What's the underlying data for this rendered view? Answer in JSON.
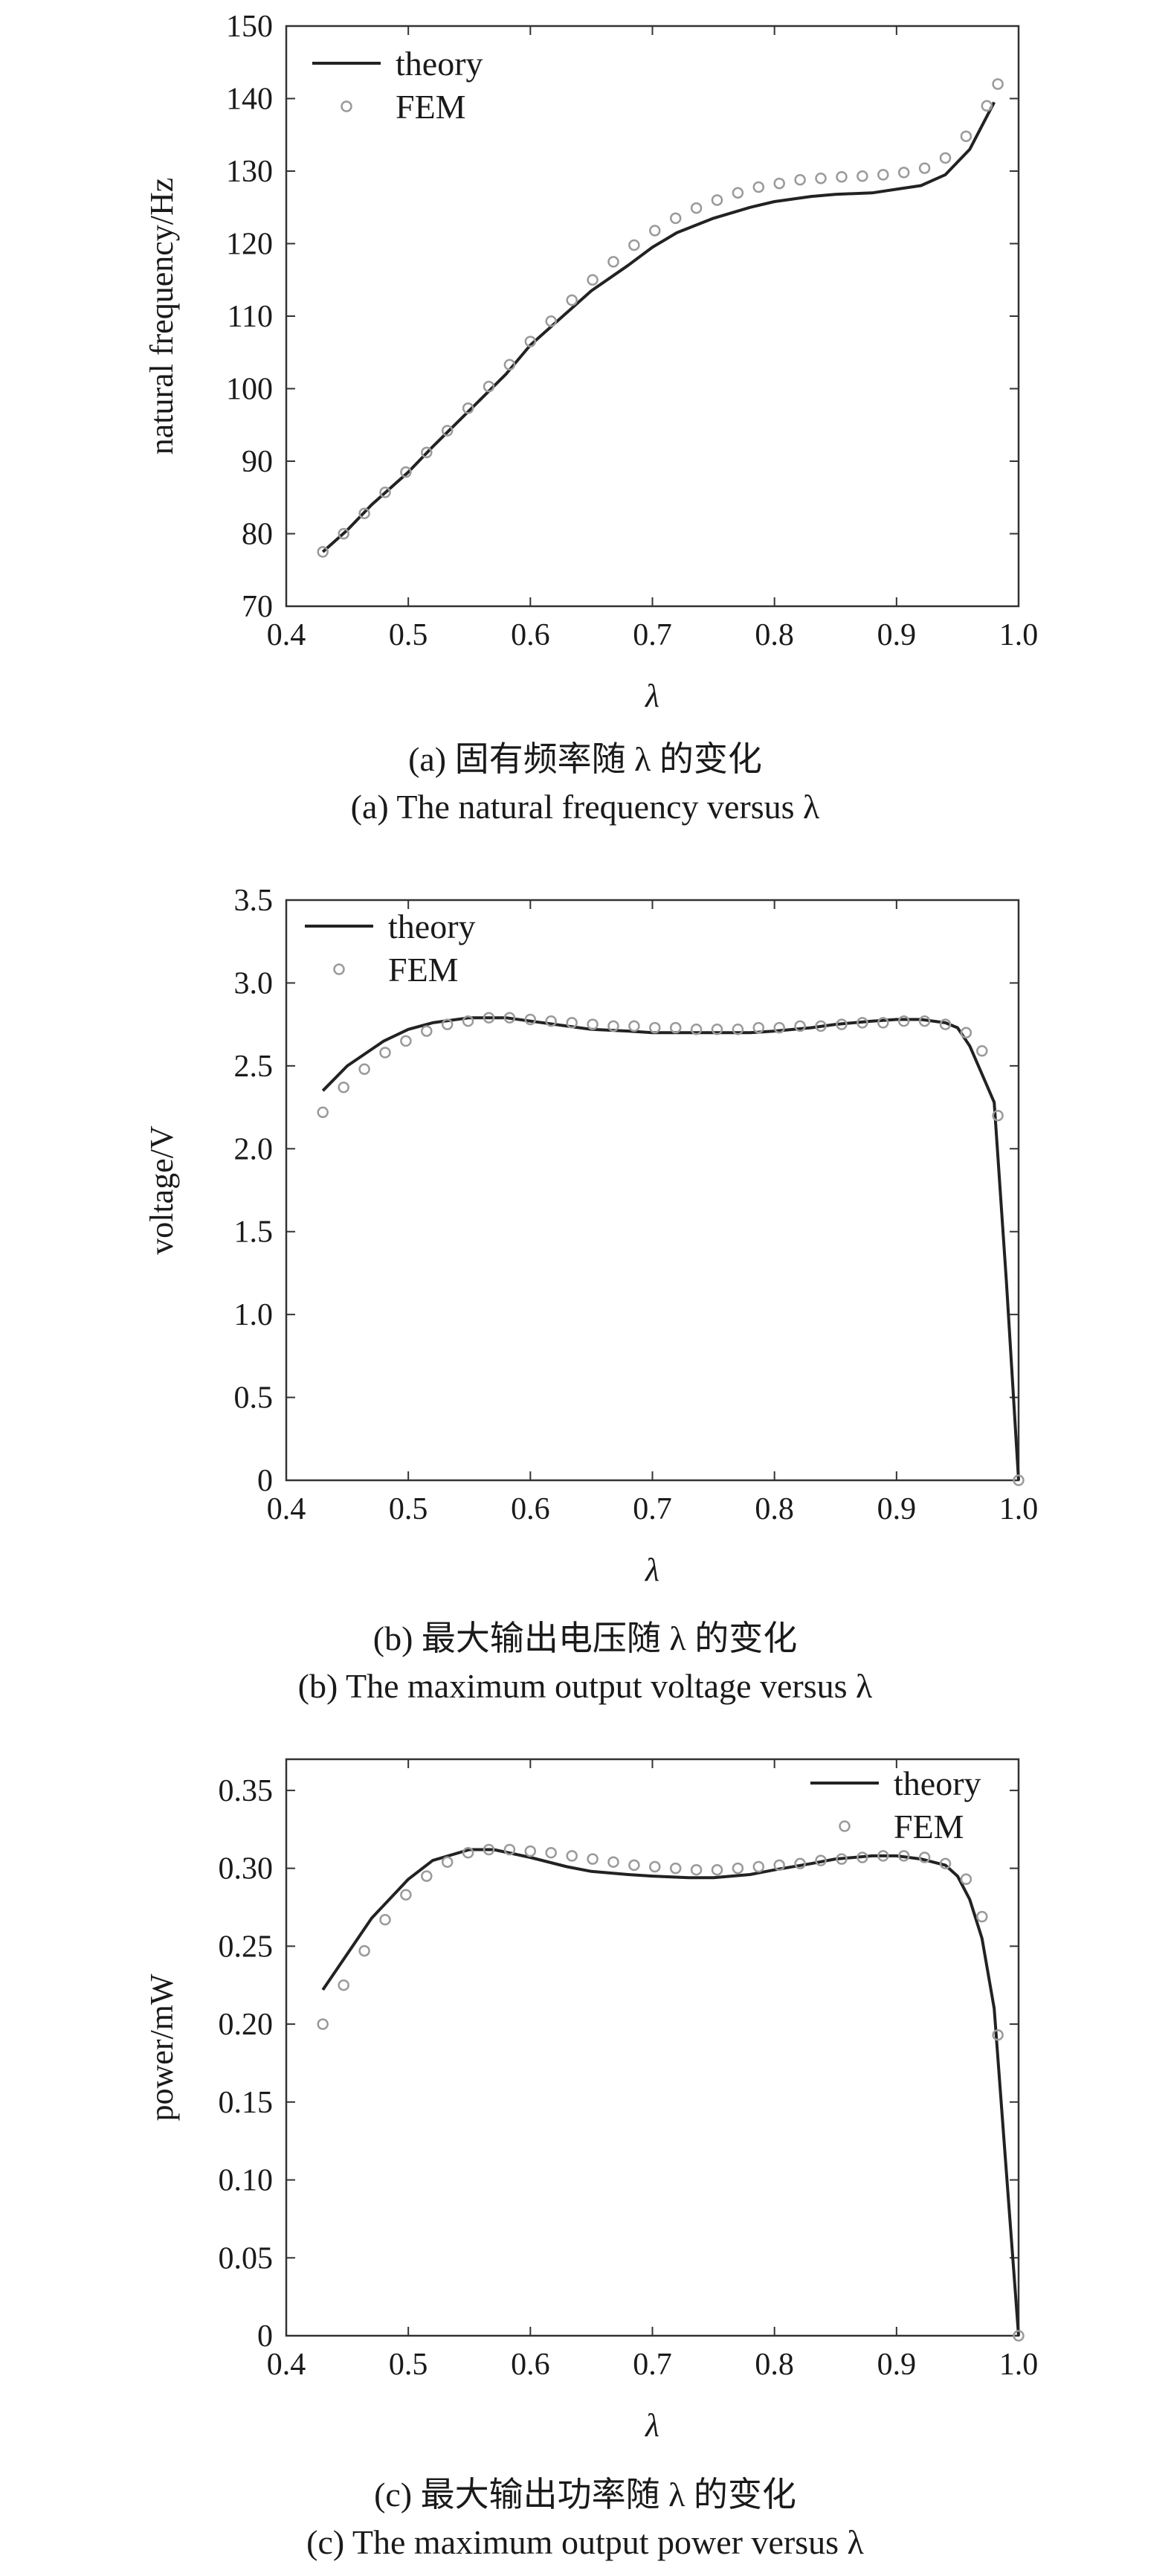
{
  "colors": {
    "theory_line": "#222222",
    "fem_marker": "#9a9a9a",
    "frame": "#333333"
  },
  "chart_data": [
    {
      "type": "line",
      "xlabel": "λ",
      "ylabel": "natural frequency/Hz",
      "xlim": [
        0.4,
        1.0
      ],
      "ylim": [
        70,
        150
      ],
      "xticks": [
        0.4,
        0.5,
        0.6,
        0.7,
        0.8,
        0.9,
        1.0
      ],
      "xtick_labels": [
        "0.4",
        "0.5",
        "0.6",
        "0.7",
        "0.8",
        "0.9",
        "1.0"
      ],
      "yticks": [
        70,
        80,
        90,
        100,
        110,
        120,
        130,
        140,
        150
      ],
      "ytick_labels": [
        "70",
        "80",
        "90",
        "100",
        "110",
        "120",
        "130",
        "140",
        "150"
      ],
      "legend_position": "top-left",
      "grid": false,
      "series": [
        {
          "name": "theory",
          "style": "line",
          "x": [
            0.43,
            0.45,
            0.47,
            0.5,
            0.52,
            0.55,
            0.58,
            0.6,
            0.63,
            0.65,
            0.68,
            0.7,
            0.72,
            0.75,
            0.78,
            0.8,
            0.83,
            0.85,
            0.88,
            0.9,
            0.92,
            0.94,
            0.96,
            0.98
          ],
          "y": [
            77.5,
            80.5,
            84.0,
            88.5,
            92.0,
            97.0,
            102.0,
            106.0,
            110.5,
            113.5,
            117.0,
            119.5,
            121.5,
            123.5,
            125.0,
            125.8,
            126.5,
            126.8,
            127.0,
            127.5,
            128.0,
            129.5,
            133.0,
            139.5
          ]
        },
        {
          "name": "FEM",
          "style": "markers",
          "x": [
            0.43,
            0.447,
            0.464,
            0.481,
            0.498,
            0.515,
            0.532,
            0.549,
            0.566,
            0.583,
            0.6,
            0.617,
            0.634,
            0.651,
            0.668,
            0.685,
            0.702,
            0.719,
            0.736,
            0.753,
            0.77,
            0.787,
            0.804,
            0.821,
            0.838,
            0.855,
            0.872,
            0.889,
            0.906,
            0.923,
            0.94,
            0.957,
            0.974,
            0.983
          ],
          "y": [
            77.5,
            80.0,
            82.8,
            85.7,
            88.5,
            91.2,
            94.2,
            97.3,
            100.3,
            103.3,
            106.5,
            109.3,
            112.2,
            115.0,
            117.5,
            119.8,
            121.8,
            123.5,
            124.9,
            126.0,
            127.0,
            127.8,
            128.3,
            128.8,
            129.0,
            129.2,
            129.3,
            129.5,
            129.8,
            130.4,
            131.8,
            134.8,
            139.0,
            142.0
          ]
        }
      ],
      "caption_cn": "(a) 固有频率随 λ 的变化",
      "caption_en": "(a) The natural frequency versus λ"
    },
    {
      "type": "line",
      "xlabel": "λ",
      "ylabel": "voltage/V",
      "xlim": [
        0.4,
        1.0
      ],
      "ylim": [
        0,
        3.5
      ],
      "xticks": [
        0.4,
        0.5,
        0.6,
        0.7,
        0.8,
        0.9,
        1.0
      ],
      "xtick_labels": [
        "0.4",
        "0.5",
        "0.6",
        "0.7",
        "0.8",
        "0.9",
        "1.0"
      ],
      "yticks": [
        0,
        0.5,
        1.0,
        1.5,
        2.0,
        2.5,
        3.0,
        3.5
      ],
      "ytick_labels": [
        "0",
        "0.5",
        "1.0",
        "1.5",
        "2.0",
        "2.5",
        "3.0",
        "3.5"
      ],
      "legend_position": "top-left",
      "grid": false,
      "series": [
        {
          "name": "theory",
          "style": "line",
          "x": [
            0.43,
            0.45,
            0.48,
            0.5,
            0.52,
            0.55,
            0.58,
            0.6,
            0.63,
            0.65,
            0.68,
            0.7,
            0.73,
            0.75,
            0.78,
            0.8,
            0.83,
            0.85,
            0.88,
            0.9,
            0.92,
            0.94,
            0.95,
            0.96,
            0.97,
            0.98,
            0.99,
            1.0
          ],
          "y": [
            2.35,
            2.5,
            2.65,
            2.72,
            2.76,
            2.79,
            2.79,
            2.77,
            2.74,
            2.72,
            2.71,
            2.7,
            2.7,
            2.7,
            2.7,
            2.71,
            2.73,
            2.75,
            2.77,
            2.78,
            2.78,
            2.76,
            2.73,
            2.62,
            2.45,
            2.28,
            1.2,
            0.0
          ]
        },
        {
          "name": "FEM",
          "style": "markers",
          "x": [
            0.43,
            0.447,
            0.464,
            0.481,
            0.498,
            0.515,
            0.532,
            0.549,
            0.566,
            0.583,
            0.6,
            0.617,
            0.634,
            0.651,
            0.668,
            0.685,
            0.702,
            0.719,
            0.736,
            0.753,
            0.77,
            0.787,
            0.804,
            0.821,
            0.838,
            0.855,
            0.872,
            0.889,
            0.906,
            0.923,
            0.94,
            0.957,
            0.97,
            0.983,
            1.0
          ],
          "y": [
            2.22,
            2.37,
            2.48,
            2.58,
            2.65,
            2.71,
            2.75,
            2.77,
            2.79,
            2.79,
            2.78,
            2.77,
            2.76,
            2.75,
            2.74,
            2.74,
            2.73,
            2.73,
            2.72,
            2.72,
            2.72,
            2.73,
            2.73,
            2.74,
            2.74,
            2.75,
            2.76,
            2.76,
            2.77,
            2.77,
            2.75,
            2.7,
            2.59,
            2.2,
            0.0
          ]
        }
      ],
      "caption_cn": "(b) 最大输出电压随 λ 的变化",
      "caption_en": "(b) The maximum output voltage versus λ"
    },
    {
      "type": "line",
      "xlabel": "λ",
      "ylabel": "power/mW",
      "xlim": [
        0.4,
        1.0
      ],
      "ylim": [
        0,
        0.37
      ],
      "xticks": [
        0.4,
        0.5,
        0.6,
        0.7,
        0.8,
        0.9,
        1.0
      ],
      "xtick_labels": [
        "0.4",
        "0.5",
        "0.6",
        "0.7",
        "0.8",
        "0.9",
        "1.0"
      ],
      "yticks": [
        0,
        0.05,
        0.1,
        0.15,
        0.2,
        0.25,
        0.3,
        0.35
      ],
      "ytick_labels": [
        "0",
        "0.05",
        "0.10",
        "0.15",
        "0.20",
        "0.25",
        "0.30",
        "0.35"
      ],
      "legend_position": "top-right",
      "grid": false,
      "series": [
        {
          "name": "theory",
          "style": "line",
          "x": [
            0.43,
            0.45,
            0.47,
            0.5,
            0.52,
            0.55,
            0.57,
            0.6,
            0.63,
            0.65,
            0.68,
            0.7,
            0.73,
            0.75,
            0.78,
            0.8,
            0.83,
            0.85,
            0.88,
            0.9,
            0.92,
            0.94,
            0.95,
            0.96,
            0.97,
            0.98,
            0.99,
            1.0
          ],
          "y": [
            0.222,
            0.245,
            0.268,
            0.293,
            0.305,
            0.312,
            0.312,
            0.307,
            0.301,
            0.298,
            0.296,
            0.295,
            0.294,
            0.294,
            0.296,
            0.299,
            0.303,
            0.306,
            0.308,
            0.308,
            0.306,
            0.302,
            0.295,
            0.28,
            0.255,
            0.21,
            0.105,
            0.0
          ]
        },
        {
          "name": "FEM",
          "style": "markers",
          "x": [
            0.43,
            0.447,
            0.464,
            0.481,
            0.498,
            0.515,
            0.532,
            0.549,
            0.566,
            0.583,
            0.6,
            0.617,
            0.634,
            0.651,
            0.668,
            0.685,
            0.702,
            0.719,
            0.736,
            0.753,
            0.77,
            0.787,
            0.804,
            0.821,
            0.838,
            0.855,
            0.872,
            0.889,
            0.906,
            0.923,
            0.94,
            0.957,
            0.97,
            0.983,
            1.0
          ],
          "y": [
            0.2,
            0.225,
            0.247,
            0.267,
            0.283,
            0.295,
            0.304,
            0.31,
            0.312,
            0.312,
            0.311,
            0.31,
            0.308,
            0.306,
            0.304,
            0.302,
            0.301,
            0.3,
            0.299,
            0.299,
            0.3,
            0.301,
            0.302,
            0.303,
            0.305,
            0.306,
            0.307,
            0.308,
            0.308,
            0.307,
            0.303,
            0.293,
            0.269,
            0.193,
            0.0
          ]
        }
      ],
      "caption_cn": "(c) 最大输出功率随 λ 的变化",
      "caption_en": "(c) The maximum output power versus λ"
    }
  ]
}
